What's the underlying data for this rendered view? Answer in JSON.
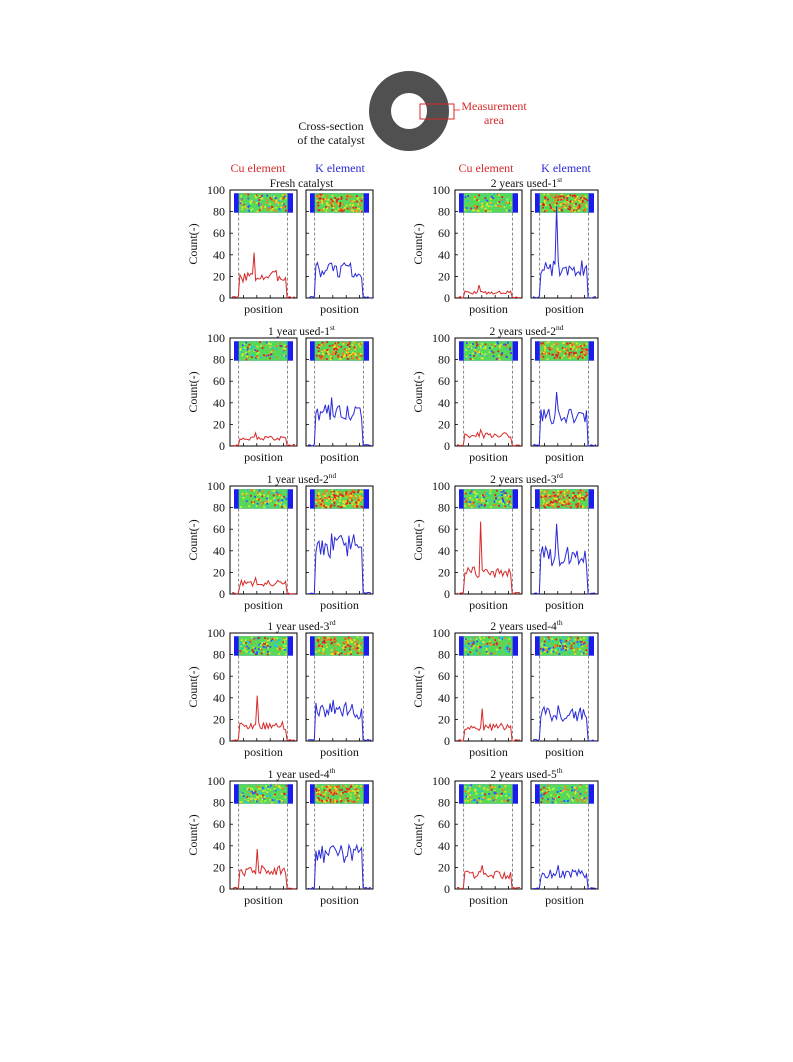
{
  "header": {
    "cross_section_label": [
      "Cross-section",
      "of the catalyst"
    ],
    "measurement_label": [
      "Measurement",
      "area"
    ],
    "cu_color": "#e02020",
    "k_color": "#2a2ad8",
    "ring_color": "#505050"
  },
  "column_headers": {
    "left": {
      "cu": "Cu element",
      "k": "K element"
    },
    "right": {
      "cu": "Cu element",
      "k": "K element"
    }
  },
  "axis": {
    "ylabel": "Count(-)",
    "xlabel": "position",
    "yticks": [
      0,
      20,
      40,
      60,
      80,
      100
    ],
    "ylim": [
      0,
      100
    ]
  },
  "chart_data": [
    {
      "type": "line",
      "title": "Fresh catalyst",
      "sup": "",
      "series": [
        {
          "name": "Cu element",
          "color": "#d82a2a",
          "plateau": 20,
          "peak": 42
        },
        {
          "name": "K element",
          "color": "#2a2ad8",
          "plateau": 26,
          "peak": 32
        }
      ]
    },
    {
      "type": "line",
      "title": "2 years  used-1",
      "sup": "st",
      "series": [
        {
          "name": "Cu element",
          "color": "#d82a2a",
          "plateau": 5,
          "peak": 12
        },
        {
          "name": "K element",
          "color": "#2a2ad8",
          "plateau": 28,
          "peak": 85
        }
      ]
    },
    {
      "type": "line",
      "title": "1 year  used-1",
      "sup": "st",
      "series": [
        {
          "name": "Cu element",
          "color": "#d82a2a",
          "plateau": 7,
          "peak": 12
        },
        {
          "name": "K element",
          "color": "#2a2ad8",
          "plateau": 30,
          "peak": 45
        }
      ]
    },
    {
      "type": "line",
      "title": "2 years  used-2",
      "sup": "nd",
      "series": [
        {
          "name": "Cu element",
          "color": "#d82a2a",
          "plateau": 10,
          "peak": 15
        },
        {
          "name": "K element",
          "color": "#2a2ad8",
          "plateau": 28,
          "peak": 50
        }
      ]
    },
    {
      "type": "line",
      "title": "1 year  used-2",
      "sup": "nd",
      "series": [
        {
          "name": "Cu element",
          "color": "#d82a2a",
          "plateau": 10,
          "peak": 15
        },
        {
          "name": "K element",
          "color": "#2a2ad8",
          "plateau": 45,
          "peak": 56
        }
      ]
    },
    {
      "type": "line",
      "title": "2 years  used-3",
      "sup": "rd",
      "series": [
        {
          "name": "Cu element",
          "color": "#d82a2a",
          "plateau": 20,
          "peak": 67
        },
        {
          "name": "K element",
          "color": "#2a2ad8",
          "plateau": 35,
          "peak": 65
        }
      ]
    },
    {
      "type": "line",
      "title": "1 year  used-3",
      "sup": "rd",
      "series": [
        {
          "name": "Cu element",
          "color": "#d82a2a",
          "plateau": 14,
          "peak": 42
        },
        {
          "name": "K element",
          "color": "#2a2ad8",
          "plateau": 28,
          "peak": 38
        }
      ]
    },
    {
      "type": "line",
      "title": "2 years  used-4",
      "sup": "th",
      "series": [
        {
          "name": "Cu element",
          "color": "#d82a2a",
          "plateau": 13,
          "peak": 30
        },
        {
          "name": "K element",
          "color": "#2a2ad8",
          "plateau": 25,
          "peak": 33
        }
      ]
    },
    {
      "type": "line",
      "title": "1 year  used-4",
      "sup": "th",
      "series": [
        {
          "name": "Cu element",
          "color": "#d82a2a",
          "plateau": 17,
          "peak": 37
        },
        {
          "name": "K element",
          "color": "#2a2ad8",
          "plateau": 32,
          "peak": 40
        }
      ]
    },
    {
      "type": "line",
      "title": "2 years  used-5",
      "sup": "th",
      "series": [
        {
          "name": "Cu element",
          "color": "#d82a2a",
          "plateau": 13,
          "peak": 22
        },
        {
          "name": "K element",
          "color": "#2a2ad8",
          "plateau": 14,
          "peak": 22
        }
      ]
    }
  ]
}
